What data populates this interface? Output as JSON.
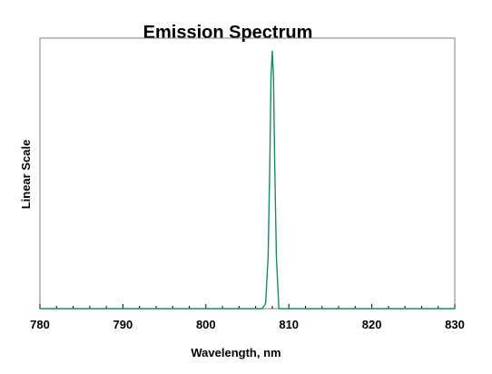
{
  "chart_data": {
    "type": "line",
    "title": "Emission Spectrum",
    "xlabel": "Wavelength, nm",
    "ylabel": "Linear Scale",
    "xlim": [
      780,
      830
    ],
    "ylim": [
      0,
      1.05
    ],
    "x_ticks": [
      "780",
      "790",
      "800",
      "810",
      "820",
      "830"
    ],
    "x_tick_values": [
      780,
      790,
      800,
      810,
      820,
      830
    ],
    "x_minor_step": 2,
    "grid": false,
    "series": [
      {
        "color": "#1a8a6a",
        "x": [
          780,
          806.8,
          807.2,
          807.5,
          807.7,
          807.85,
          808.0,
          808.15,
          808.3,
          808.5,
          808.8,
          830
        ],
        "y": [
          0,
          0,
          0.02,
          0.2,
          0.55,
          0.9,
          1.0,
          0.9,
          0.55,
          0.2,
          0,
          0
        ]
      }
    ]
  }
}
